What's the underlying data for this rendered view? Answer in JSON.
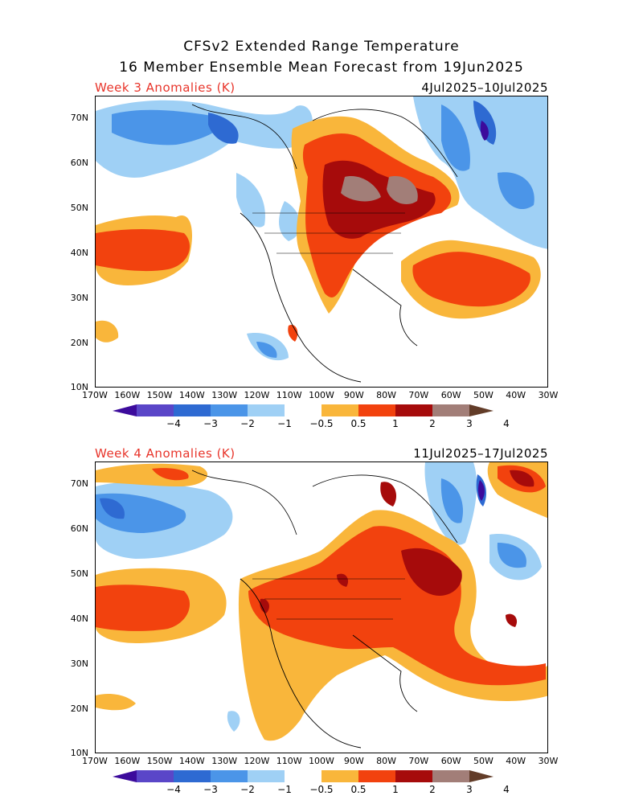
{
  "header": {
    "title_line1": "CFSv2 Extended Range Temperature",
    "title_line2": "16 Member Ensemble Mean Forecast from 19Jun2025"
  },
  "panels": [
    {
      "label": "Week 3 Anomalies (K)",
      "dates": "4Jul2025–10Jul2025"
    },
    {
      "label": "Week 4 Anomalies (K)",
      "dates": "11Jul2025–17Jul2025"
    }
  ],
  "axes": {
    "lat_labels": [
      "70N",
      "60N",
      "50N",
      "40N",
      "30N",
      "20N",
      "10N"
    ],
    "lon_labels": [
      "170W",
      "160W",
      "150W",
      "140W",
      "130W",
      "120W",
      "110W",
      "100W",
      "90W",
      "80W",
      "70W",
      "60W",
      "50W",
      "40W",
      "30W"
    ]
  },
  "colorbar": {
    "tick_labels": [
      "−4",
      "−3",
      "−2",
      "−1",
      "−0.5",
      "0.5",
      "1",
      "2",
      "3",
      "4"
    ],
    "colors": [
      "#3c0b9c",
      "#5a46c8",
      "#2e6ad2",
      "#4b95e8",
      "#9fd0f5",
      "#ffffff",
      "#f9b63b",
      "#f2420e",
      "#a60b0b",
      "#a27e78",
      "#623c28"
    ]
  }
}
